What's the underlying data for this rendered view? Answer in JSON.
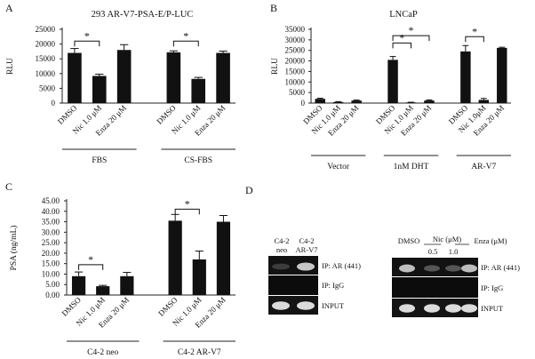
{
  "panels": {
    "A": {
      "letter": "A",
      "title": "293 AR-V7-PSA-E/P-LUC"
    },
    "B": {
      "letter": "B",
      "title": "LNCaP"
    },
    "C": {
      "letter": "C",
      "title": ""
    },
    "D": {
      "letter": "D"
    }
  },
  "chart_data": [
    {
      "id": "A",
      "type": "bar",
      "title": "293 AR-V7-PSA-E/P-LUC",
      "ylabel": "RLU",
      "ylim": [
        0,
        25000
      ],
      "yticks": [
        "0",
        "5000",
        "10000",
        "15000",
        "20000",
        "25000"
      ],
      "ytick_values": [
        0,
        5000,
        10000,
        15000,
        20000,
        25000
      ],
      "categories": [
        "DMSO",
        "Nic 1.0 μM",
        "Enza 20 μM",
        "DMSO",
        "Nic 1.0 μM",
        "Enza 20 μM"
      ],
      "values": [
        17000,
        9200,
        18000,
        17200,
        8200,
        17000
      ],
      "errors": [
        1500,
        600,
        1800,
        500,
        500,
        600
      ],
      "groups": [
        {
          "label": "FBS",
          "indices": [
            0,
            1,
            2
          ]
        },
        {
          "label": "CS-FBS",
          "indices": [
            3,
            4,
            5
          ]
        }
      ],
      "significance": [
        {
          "from": 0,
          "to": 1,
          "level": 21000,
          "label": "*"
        },
        {
          "from": 3,
          "to": 4,
          "level": 21000,
          "label": "*"
        }
      ]
    },
    {
      "id": "B",
      "type": "bar",
      "title": "LNCaP",
      "ylabel": "RLU",
      "ylim": [
        0,
        35000
      ],
      "yticks": [
        "0",
        "5000",
        "10000",
        "15000",
        "20000",
        "25000",
        "30000",
        "35000"
      ],
      "ytick_values": [
        0,
        5000,
        10000,
        15000,
        20000,
        25000,
        30000,
        35000
      ],
      "categories": [
        "DMSO",
        "Nic 1.0 μM",
        "Enza 20 μM",
        "DMSO",
        "Nic 1.0 μM",
        "Enza 20 μM",
        "DMSO",
        "Nic 1.0μM",
        "Enza 20 μM"
      ],
      "values": [
        2000,
        500,
        1200,
        20500,
        300,
        1200,
        24500,
        1500,
        26200
      ],
      "errors": [
        300,
        200,
        250,
        1600,
        100,
        300,
        2800,
        700,
        300
      ],
      "groups": [
        {
          "label": "Vector",
          "indices": [
            0,
            1,
            2
          ]
        },
        {
          "label": "1nM DHT",
          "indices": [
            3,
            4,
            5
          ]
        },
        {
          "label": "AR-V7",
          "indices": [
            6,
            7,
            8
          ]
        }
      ],
      "significance": [
        {
          "from": 3,
          "to": 4,
          "level": 28500,
          "label": "*"
        },
        {
          "from": 3,
          "to": 5,
          "level": 32000,
          "label": "*"
        },
        {
          "from": 6,
          "to": 7,
          "level": 31500,
          "label": "*"
        }
      ]
    },
    {
      "id": "C",
      "type": "bar",
      "title": "",
      "ylabel": "PSA (ng/mL)",
      "ylim": [
        0,
        45
      ],
      "yticks": [
        "0.00",
        "5.00",
        "10.00",
        "15.00",
        "20.00",
        "25.00",
        "30.00",
        "35.00",
        "40.00",
        "45.00"
      ],
      "ytick_values": [
        0,
        5,
        10,
        15,
        20,
        25,
        30,
        35,
        40,
        45
      ],
      "categories": [
        "DMSO",
        "Nic 1.0 μM",
        "Enza 20 μM",
        "DMSO",
        "Nic 1.0 μM",
        "Enza 20 μM"
      ],
      "values": [
        9.0,
        4.2,
        9.0,
        35.5,
        17.0,
        35.0
      ],
      "errors": [
        2.0,
        0.4,
        1.8,
        3.0,
        4.0,
        3.0
      ],
      "groups": [
        {
          "label": "C4-2 neo",
          "indices": [
            0,
            1,
            2
          ]
        },
        {
          "label": "C4-2 AR-V7",
          "indices": [
            3,
            4,
            5
          ]
        }
      ],
      "significance": [
        {
          "from": 0,
          "to": 1,
          "level": 14.5,
          "label": "*"
        },
        {
          "from": 3,
          "to": 4,
          "level": 41.0,
          "label": "*"
        }
      ]
    }
  ],
  "blots": {
    "left": {
      "col_labels": [
        {
          "line1": "C4-2",
          "line2": "neo"
        },
        {
          "line1": "C4-2",
          "line2": "AR-V7"
        }
      ],
      "rows": [
        "IP: AR (441)",
        "IP: IgG",
        "INPUT"
      ],
      "band_intensity": [
        [
          0.12,
          0.85
        ],
        [
          0.0,
          0.0
        ],
        [
          0.95,
          0.95
        ]
      ]
    },
    "right": {
      "header": {
        "dmso": "DMSO",
        "nic": "Nic (μM)",
        "enza": "Enza (μM)",
        "dose1": "0.5",
        "dose2": "1.0"
      },
      "rows": [
        "IP: AR (441)",
        "IP: IgG",
        "INPUT"
      ],
      "band_intensity": [
        [
          0.8,
          0.25,
          0.25,
          0.8
        ],
        [
          0.0,
          0.0,
          0.0,
          0.0
        ],
        [
          0.95,
          0.95,
          0.95,
          0.95
        ]
      ]
    }
  }
}
